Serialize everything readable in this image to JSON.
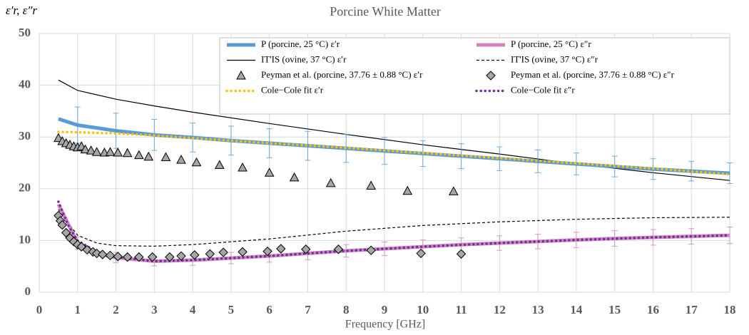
{
  "chart_data": {
    "type": "line",
    "title": "Porcine White Matter",
    "x_label": "Frequency [GHz]",
    "y_label": "ε′r, ε″r",
    "xlim": [
      0,
      18
    ],
    "xticks": [
      0,
      1,
      2,
      3,
      4,
      5,
      6,
      7,
      8,
      9,
      10,
      11,
      12,
      13,
      14,
      15,
      16,
      17,
      18
    ],
    "ylim": [
      0,
      50
    ],
    "yticks": [
      0,
      10,
      20,
      30,
      40,
      50
    ],
    "grid": true,
    "series": [
      {
        "name": "P (porcine, 25 °C) ε′r",
        "color": "#5b9bd5",
        "style": "thick",
        "x": [
          0.5,
          1,
          2,
          3,
          4,
          5,
          6,
          7,
          8,
          9,
          10,
          11,
          12,
          13,
          14,
          15,
          16,
          17,
          18
        ],
        "values": [
          33.5,
          32.3,
          31.2,
          30.4,
          29.9,
          29.3,
          28.8,
          28.3,
          27.8,
          27.3,
          26.8,
          26.3,
          25.8,
          25.3,
          24.8,
          24.3,
          23.8,
          23.4,
          23
        ],
        "errors": [
          null,
          3.5,
          3.4,
          3,
          2.8,
          2.8,
          2.8,
          2.8,
          2.7,
          2.6,
          2.5,
          2.4,
          2.3,
          2.2,
          2.1,
          2,
          2,
          1.9,
          2
        ]
      },
      {
        "name": "P (porcine, 25 °C) ε″r",
        "color": "#d086bf",
        "style": "thick",
        "x": [
          0.5,
          1,
          1.5,
          2,
          3,
          4,
          5,
          6,
          7,
          8,
          9,
          10,
          11,
          12,
          13,
          14,
          15,
          16,
          17,
          18
        ],
        "values": [
          17,
          9.5,
          7.5,
          6.7,
          6,
          6.2,
          6.6,
          7,
          7.5,
          8,
          8.4,
          8.8,
          9.2,
          9.5,
          9.8,
          10.1,
          10.4,
          10.6,
          10.8,
          11
        ],
        "errors": [
          null,
          1.2,
          null,
          1,
          0.9,
          1,
          1.1,
          1.2,
          1.2,
          1.2,
          1.3,
          1.3,
          1.3,
          1.4,
          1.4,
          1.5,
          1.5,
          1.5,
          1.5,
          1.6
        ]
      },
      {
        "name": "IT'IS (ovine, 37 °C) ε′r",
        "color": "#000000",
        "style": "thin",
        "x": [
          0.5,
          1,
          2,
          3,
          4,
          6,
          8,
          10,
          12,
          14,
          16,
          18
        ],
        "values": [
          41,
          39,
          37.3,
          36,
          34.8,
          32.6,
          30.5,
          28.5,
          26.7,
          24.8,
          23.1,
          21.6
        ]
      },
      {
        "name": "IT'IS (ovine, 37 °C) ε″r",
        "color": "#000000",
        "style": "dashed",
        "x": [
          0.5,
          1,
          1.5,
          2,
          3,
          4,
          6,
          8,
          10,
          12,
          14,
          16,
          18
        ],
        "values": [
          16,
          11,
          9.5,
          9,
          8.9,
          9.2,
          10.3,
          11.8,
          12.9,
          13.6,
          14.1,
          14.4,
          14.5
        ]
      },
      {
        "name": "Peyman et al. (porcine, 37.76 ± 0.88 °C) ε′r",
        "color": "#a6a6a6",
        "style": "markers",
        "marker": "triangle",
        "x": [
          0.5,
          0.6,
          0.7,
          0.8,
          0.9,
          1.0,
          1.1,
          1.2,
          1.35,
          1.5,
          1.7,
          1.85,
          2.05,
          2.3,
          2.6,
          2.85,
          3.3,
          3.7,
          4.1,
          4.7,
          5.3,
          6.0,
          6.65,
          7.6,
          8.65,
          9.6,
          10.8
        ],
        "values": [
          29.8,
          29.2,
          28.8,
          28.5,
          28.2,
          28,
          28.2,
          27.6,
          27.4,
          27.1,
          27,
          27.1,
          27,
          26.9,
          26.5,
          26.2,
          26.1,
          25.6,
          25.1,
          24.6,
          24.1,
          23.1,
          22.2,
          21.1,
          20.6,
          19.6,
          19.5
        ]
      },
      {
        "name": "Peyman et al. (porcine, 37.76 ± 0.88 °C) ε″r",
        "color": "#a6a6a6",
        "style": "markers",
        "marker": "diamond",
        "x": [
          0.5,
          0.55,
          0.6,
          0.7,
          0.8,
          0.9,
          1.0,
          1.1,
          1.25,
          1.4,
          1.5,
          1.65,
          1.85,
          2.05,
          2.3,
          2.6,
          2.95,
          3.4,
          3.7,
          4.05,
          4.45,
          4.8,
          5.3,
          5.95,
          6.3,
          6.95,
          7.8,
          8.65,
          9.95,
          11.0
        ],
        "values": [
          14.8,
          13.8,
          13,
          11.5,
          10.5,
          9.8,
          9.2,
          8.8,
          8.2,
          7.8,
          7.5,
          7.3,
          7.1,
          6.9,
          6.8,
          6.8,
          6.8,
          6.8,
          7,
          7.2,
          7.4,
          7.7,
          7.8,
          7.9,
          8.4,
          8.3,
          8.3,
          8.1,
          7.5,
          7.4
        ]
      },
      {
        "name": "Cole−Cole fit ε′r",
        "color": "#ffc000",
        "style": "dotted",
        "x": [
          0.5,
          2,
          3,
          4,
          6,
          8,
          10,
          12,
          14,
          16,
          18
        ],
        "values": [
          31,
          30.7,
          30.3,
          29.8,
          28.8,
          27.9,
          26.9,
          25.9,
          24.9,
          23.9,
          22.8
        ]
      },
      {
        "name": "Cole−Cole fit ε″r",
        "color": "#7030a0",
        "style": "dotted",
        "x": [
          0.5,
          0.75,
          1,
          1.5,
          2,
          3,
          4,
          6,
          8,
          10,
          12,
          14,
          16,
          18
        ],
        "values": [
          17.5,
          13,
          10,
          7.8,
          6.8,
          6,
          6.2,
          7,
          8,
          8.8,
          9.5,
          10.1,
          10.6,
          11
        ]
      }
    ]
  }
}
